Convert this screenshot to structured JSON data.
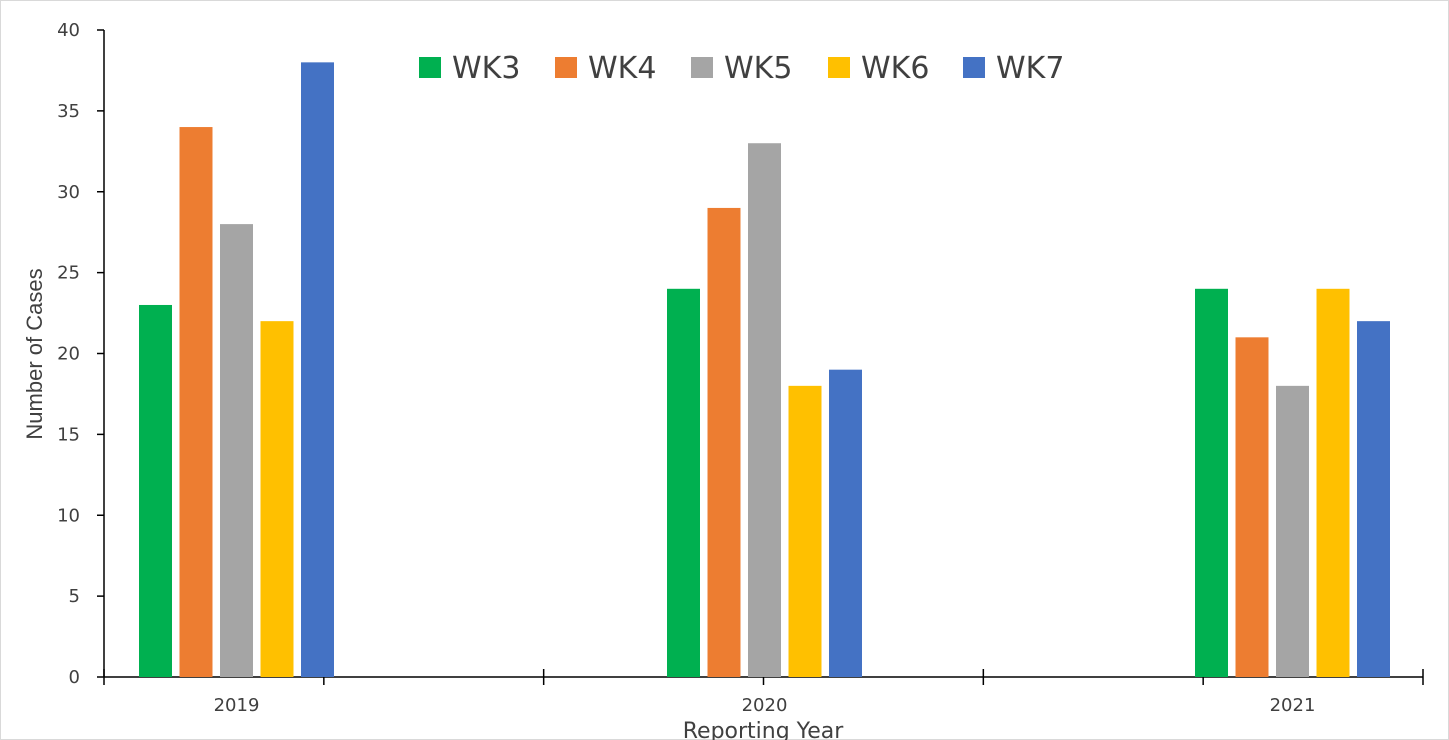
{
  "chart_data": {
    "type": "bar",
    "title": "",
    "xlabel": "Reporting Year",
    "ylabel": "Number of Cases",
    "categories": [
      "2019",
      "2020",
      "2021"
    ],
    "ylim": [
      0,
      40
    ],
    "yticks": [
      0,
      5,
      10,
      15,
      20,
      25,
      30,
      35,
      40
    ],
    "grid": false,
    "legend_position": "top",
    "series": [
      {
        "name": "WK3",
        "color": "#00b050",
        "values": [
          23,
          24,
          24
        ]
      },
      {
        "name": "WK4",
        "color": "#ed7d31",
        "values": [
          34,
          29,
          21
        ]
      },
      {
        "name": "WK5",
        "color": "#a5a5a5",
        "values": [
          28,
          33,
          18
        ]
      },
      {
        "name": "WK6",
        "color": "#ffc000",
        "values": [
          22,
          18,
          24
        ]
      },
      {
        "name": "WK7",
        "color": "#4472c4",
        "values": [
          38,
          19,
          22
        ]
      }
    ]
  }
}
